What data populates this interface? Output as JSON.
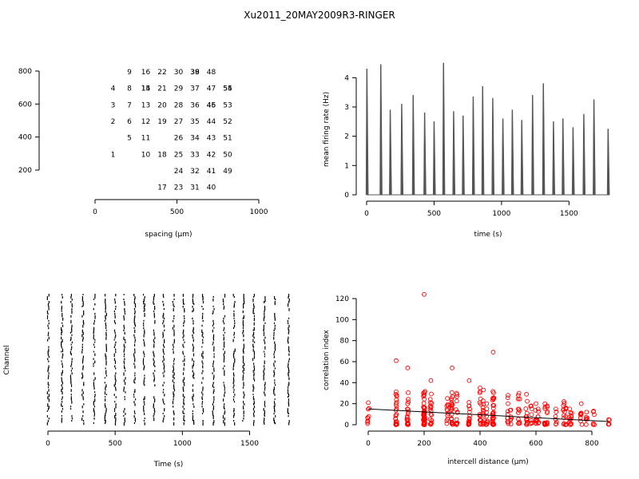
{
  "title": "Xu2011_20MAY2009R3-RINGER",
  "chart_data": [
    {
      "type": "scatter",
      "panel": "electrode-layout",
      "xlabel": "spacing (µm)",
      "ylabel": "",
      "xlim": [
        0,
        1000
      ],
      "ylim": [
        200,
        800
      ],
      "x_ticks": [
        0,
        500,
        1000
      ],
      "y_ticks": [
        200,
        400,
        600,
        800
      ],
      "grid": false,
      "channels": [
        {
          "label": "1",
          "x": 100,
          "y": 300
        },
        {
          "label": "2",
          "x": 100,
          "y": 500
        },
        {
          "label": "3",
          "x": 100,
          "y": 600
        },
        {
          "label": "4",
          "x": 100,
          "y": 700
        },
        {
          "label": "5",
          "x": 200,
          "y": 400
        },
        {
          "label": "6",
          "x": 200,
          "y": 500
        },
        {
          "label": "7",
          "x": 200,
          "y": 600
        },
        {
          "label": "8",
          "x": 200,
          "y": 700
        },
        {
          "label": "9",
          "x": 200,
          "y": 800
        },
        {
          "label": "10",
          "x": 300,
          "y": 300
        },
        {
          "label": "11",
          "x": 300,
          "y": 400
        },
        {
          "label": "12",
          "x": 300,
          "y": 500
        },
        {
          "label": "13",
          "x": 300,
          "y": 600
        },
        {
          "label": "14",
          "x": 300,
          "y": 700
        },
        {
          "label": "15",
          "x": 300,
          "y": 700
        },
        {
          "label": "16",
          "x": 300,
          "y": 800
        },
        {
          "label": "17",
          "x": 400,
          "y": 100
        },
        {
          "label": "18",
          "x": 400,
          "y": 300
        },
        {
          "label": "19",
          "x": 400,
          "y": 500
        },
        {
          "label": "20",
          "x": 400,
          "y": 600
        },
        {
          "label": "21",
          "x": 400,
          "y": 700
        },
        {
          "label": "22",
          "x": 400,
          "y": 800
        },
        {
          "label": "23",
          "x": 500,
          "y": 100
        },
        {
          "label": "24",
          "x": 500,
          "y": 200
        },
        {
          "label": "25",
          "x": 500,
          "y": 300
        },
        {
          "label": "26",
          "x": 500,
          "y": 400
        },
        {
          "label": "27",
          "x": 500,
          "y": 500
        },
        {
          "label": "28",
          "x": 500,
          "y": 600
        },
        {
          "label": "29",
          "x": 500,
          "y": 700
        },
        {
          "label": "30",
          "x": 500,
          "y": 800
        },
        {
          "label": "31",
          "x": 600,
          "y": 100
        },
        {
          "label": "32",
          "x": 600,
          "y": 200
        },
        {
          "label": "33",
          "x": 600,
          "y": 300
        },
        {
          "label": "34",
          "x": 600,
          "y": 400
        },
        {
          "label": "35",
          "x": 600,
          "y": 500
        },
        {
          "label": "36",
          "x": 600,
          "y": 600
        },
        {
          "label": "37",
          "x": 600,
          "y": 700
        },
        {
          "label": "38",
          "x": 600,
          "y": 800
        },
        {
          "label": "39",
          "x": 600,
          "y": 800
        },
        {
          "label": "40",
          "x": 700,
          "y": 100
        },
        {
          "label": "41",
          "x": 700,
          "y": 200
        },
        {
          "label": "42",
          "x": 700,
          "y": 300
        },
        {
          "label": "43",
          "x": 700,
          "y": 400
        },
        {
          "label": "44",
          "x": 700,
          "y": 500
        },
        {
          "label": "45",
          "x": 700,
          "y": 600
        },
        {
          "label": "46",
          "x": 700,
          "y": 600
        },
        {
          "label": "47",
          "x": 700,
          "y": 700
        },
        {
          "label": "48",
          "x": 700,
          "y": 800
        },
        {
          "label": "49",
          "x": 800,
          "y": 200
        },
        {
          "label": "50",
          "x": 800,
          "y": 300
        },
        {
          "label": "51",
          "x": 800,
          "y": 400
        },
        {
          "label": "52",
          "x": 800,
          "y": 500
        },
        {
          "label": "53",
          "x": 800,
          "y": 600
        },
        {
          "label": "54",
          "x": 800,
          "y": 700
        },
        {
          "label": "55",
          "x": 800,
          "y": 700
        }
      ]
    },
    {
      "type": "bar",
      "panel": "mean-firing-rate",
      "xlabel": "time (s)",
      "ylabel": "mean firing rate (Hz)",
      "xlim": [
        0,
        1800
      ],
      "ylim": [
        0,
        4.5
      ],
      "x_ticks": [
        0,
        500,
        1000,
        1500
      ],
      "y_ticks": [
        0,
        1,
        2,
        3,
        4
      ],
      "grid": false,
      "color": "#555555",
      "bursts": [
        {
          "t": 2,
          "rate": 4.3
        },
        {
          "t": 105,
          "rate": 4.45
        },
        {
          "t": 175,
          "rate": 2.9
        },
        {
          "t": 260,
          "rate": 3.1
        },
        {
          "t": 345,
          "rate": 3.4
        },
        {
          "t": 430,
          "rate": 2.8
        },
        {
          "t": 500,
          "rate": 2.5
        },
        {
          "t": 570,
          "rate": 4.5
        },
        {
          "t": 645,
          "rate": 2.85
        },
        {
          "t": 715,
          "rate": 2.7
        },
        {
          "t": 790,
          "rate": 3.35
        },
        {
          "t": 860,
          "rate": 3.7
        },
        {
          "t": 935,
          "rate": 3.3
        },
        {
          "t": 1010,
          "rate": 2.6
        },
        {
          "t": 1080,
          "rate": 2.9
        },
        {
          "t": 1150,
          "rate": 2.55
        },
        {
          "t": 1230,
          "rate": 3.4
        },
        {
          "t": 1310,
          "rate": 3.8
        },
        {
          "t": 1385,
          "rate": 2.5
        },
        {
          "t": 1455,
          "rate": 2.6
        },
        {
          "t": 1530,
          "rate": 2.3
        },
        {
          "t": 1610,
          "rate": 2.75
        },
        {
          "t": 1685,
          "rate": 3.25
        },
        {
          "t": 1790,
          "rate": 2.25
        }
      ]
    },
    {
      "type": "scatter",
      "panel": "raster",
      "xlabel": "Time (s)",
      "ylabel": "Channel",
      "xlim": [
        0,
        1800
      ],
      "x_ticks": [
        0,
        500,
        1000,
        1500
      ],
      "grid": false,
      "burst_times": [
        2,
        105,
        175,
        260,
        345,
        430,
        500,
        570,
        645,
        715,
        790,
        860,
        935,
        1010,
        1080,
        1150,
        1230,
        1310,
        1385,
        1455,
        1530,
        1610,
        1685,
        1790
      ],
      "channel_count": 55
    },
    {
      "type": "scatter",
      "panel": "correlation",
      "xlabel": "intercell distance (µm)",
      "ylabel": "correlation index",
      "xlim": [
        0,
        860
      ],
      "ylim": [
        0,
        125
      ],
      "x_ticks": [
        0,
        200,
        400,
        600,
        800
      ],
      "y_ticks": [
        0,
        20,
        40,
        60,
        80,
        100,
        120
      ],
      "grid": false,
      "point_color": "#ff0000",
      "fit_line": {
        "x": [
          0,
          860
        ],
        "y": [
          15,
          3
        ]
      },
      "columns": [
        {
          "x": 0,
          "max": 21
        },
        {
          "x": 100,
          "max": 61
        },
        {
          "x": 141,
          "max": 54
        },
        {
          "x": 200,
          "max": 124
        },
        {
          "x": 224,
          "max": 42
        },
        {
          "x": 283,
          "max": 25
        },
        {
          "x": 300,
          "max": 54
        },
        {
          "x": 316,
          "max": 30
        },
        {
          "x": 361,
          "max": 42
        },
        {
          "x": 400,
          "max": 35
        },
        {
          "x": 412,
          "max": 33
        },
        {
          "x": 424,
          "max": 20
        },
        {
          "x": 447,
          "max": 69
        },
        {
          "x": 500,
          "max": 28
        },
        {
          "x": 510,
          "max": 14
        },
        {
          "x": 539,
          "max": 30
        },
        {
          "x": 566,
          "max": 29
        },
        {
          "x": 583,
          "max": 18
        },
        {
          "x": 600,
          "max": 20
        },
        {
          "x": 608,
          "max": 15
        },
        {
          "x": 632,
          "max": 20
        },
        {
          "x": 640,
          "max": 18
        },
        {
          "x": 671,
          "max": 15
        },
        {
          "x": 700,
          "max": 22
        },
        {
          "x": 707,
          "max": 16
        },
        {
          "x": 721,
          "max": 15
        },
        {
          "x": 728,
          "max": 11
        },
        {
          "x": 762,
          "max": 20
        },
        {
          "x": 781,
          "max": 12
        },
        {
          "x": 806,
          "max": 13
        },
        {
          "x": 860,
          "max": 5
        }
      ]
    }
  ]
}
